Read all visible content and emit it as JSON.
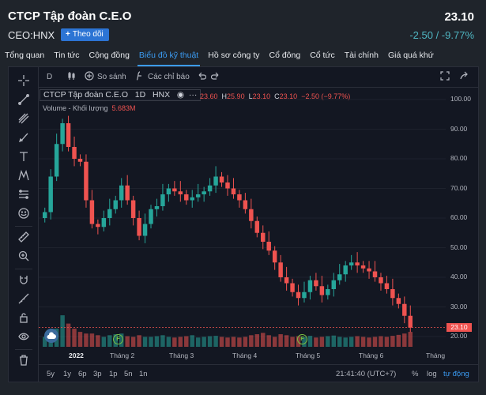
{
  "header": {
    "company": "CTCP Tập đoàn C.E.O",
    "ticker": "CEO:HNX",
    "follow_label": "Theo dõi",
    "price": "23.10",
    "change": "-2.50 / -9.77%"
  },
  "tabs": [
    {
      "label": "Tổng quan"
    },
    {
      "label": "Tin tức"
    },
    {
      "label": "Cộng đồng"
    },
    {
      "label": "Biểu đồ kỹ thuật",
      "active": true
    },
    {
      "label": "Hồ sơ công ty"
    },
    {
      "label": "Cổ đông"
    },
    {
      "label": "Cổ tức"
    },
    {
      "label": "Tài chính"
    },
    {
      "label": "Giá quá khứ"
    }
  ],
  "toolbar": {
    "interval": "D",
    "compare": "So sánh",
    "indicators": "Các chỉ báo"
  },
  "legend": {
    "title": "CTCP Tập đoàn C.E.O",
    "interval": "1D",
    "exchange": "HNX",
    "o_label": "O",
    "o": "23.60",
    "h_label": "H",
    "h": "25.90",
    "l_label": "L",
    "l": "23.10",
    "c_label": "C",
    "c": "23.10",
    "chg": "−2.50 (−9.77%)",
    "vol_label": "Volume - Khối lượng",
    "vol": "5.683M"
  },
  "colors": {
    "up": "#26a69a",
    "down": "#ef5350",
    "accent": "#3b9bf2"
  },
  "chart_data": {
    "type": "candlestick",
    "x_labels": [
      "2022",
      "Tháng 2",
      "Tháng 3",
      "Tháng 4",
      "Tháng 5",
      "Tháng 6",
      "Tháng"
    ],
    "y_ticks": [
      "100.00",
      "90.00",
      "80.00",
      "70.00",
      "60.00",
      "50.00",
      "40.00",
      "30.00",
      "20.00"
    ],
    "ylim": [
      16,
      104
    ],
    "last_price": "23.10",
    "close": [
      62,
      74,
      85,
      92,
      84,
      80,
      79,
      66,
      58,
      57,
      60,
      63,
      66,
      71,
      66,
      60,
      54,
      58,
      63,
      64,
      68,
      70,
      69,
      68,
      66,
      67,
      68,
      69,
      71,
      74,
      72,
      70,
      68,
      66,
      63,
      59,
      55,
      52,
      49,
      45,
      40,
      38,
      35,
      33,
      35,
      39,
      37,
      34,
      36,
      39,
      41,
      44,
      45,
      44,
      43,
      42,
      40,
      38,
      36,
      33,
      31,
      27,
      23
    ],
    "volume": [
      0.3,
      0.45,
      0.55,
      0.95,
      0.7,
      0.55,
      0.45,
      0.4,
      0.4,
      0.35,
      0.3,
      0.35,
      0.38,
      0.4,
      0.32,
      0.3,
      0.35,
      0.3,
      0.3,
      0.32,
      0.35,
      0.3,
      0.28,
      0.3,
      0.32,
      0.35,
      0.28,
      0.3,
      0.32,
      0.33,
      0.3,
      0.28,
      0.3,
      0.28,
      0.3,
      0.35,
      0.38,
      0.42,
      0.35,
      0.3,
      0.38,
      0.35,
      0.3,
      0.32,
      0.3,
      0.33,
      0.28,
      0.3,
      0.32,
      0.34,
      0.3,
      0.28,
      0.3,
      0.32,
      0.3,
      0.28,
      0.3,
      0.32,
      0.3,
      0.33,
      0.36,
      0.4,
      0.45
    ]
  },
  "bottombar": {
    "ranges": [
      "5y",
      "1y",
      "6p",
      "3p",
      "1p",
      "5n",
      "1n"
    ],
    "time": "21:41:40 (UTC+7)",
    "percent": "%",
    "log": "log",
    "auto": "tự động"
  },
  "icons": [
    "crosshair-icon",
    "trendline-icon",
    "fib-icon",
    "brush-icon",
    "text-icon",
    "pattern-icon",
    "measure-icon",
    "emoji-icon",
    "ruler-icon",
    "zoom-in-icon",
    "magnet-icon",
    "lock-drawing-icon",
    "lock-icon",
    "eye-icon",
    "trash-icon"
  ]
}
